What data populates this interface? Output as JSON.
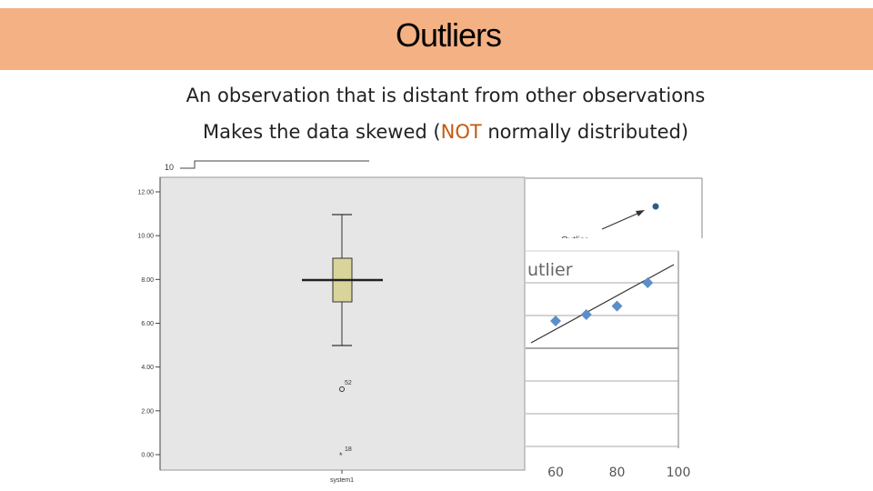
{
  "slide": {
    "title": "Outliers",
    "line1": "An observation that is distant from other observations",
    "line2_before": "Makes the data skewed (",
    "line2_highlight": "NOT",
    "line2_after": " normally distributed)",
    "highlight_color": "#c55a11",
    "title_bar_color": "#f4b183"
  },
  "top_chart": {
    "y_tick_partial": "10",
    "annotation": "Outlier"
  },
  "boxplot": {
    "y_ticks": [
      "12.00",
      "10.00",
      "8.00",
      "6.00",
      "4.00",
      "2.00",
      "0.00"
    ],
    "x_label": "system1",
    "min": 5,
    "q1": 7,
    "median": 8,
    "q3": 9,
    "max": 11,
    "outlier_points": [
      {
        "label": "52",
        "value": 3,
        "marker": "○"
      },
      {
        "label": "18",
        "value": 0,
        "marker": "*"
      }
    ],
    "box_color": "#d8d49a",
    "plot_bg": "#e6e6e6"
  },
  "scatter": {
    "title": "utlier",
    "x_ticks": [
      "60",
      "80",
      "100"
    ],
    "x": [
      60,
      70,
      80,
      90
    ],
    "y": [
      6.1,
      6.4,
      6.8,
      7.9
    ],
    "point_color": "#5b8fc9"
  }
}
